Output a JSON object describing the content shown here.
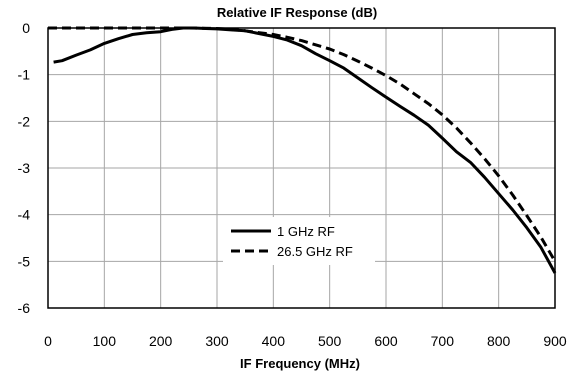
{
  "chart_data": {
    "type": "line",
    "title": "Relative IF Response (dB)",
    "xlabel": "IF Frequency (MHz)",
    "ylabel": "",
    "xlim": [
      0,
      900
    ],
    "ylim": [
      -6,
      0
    ],
    "x_ticks": [
      "0",
      "100",
      "200",
      "300",
      "400",
      "500",
      "600",
      "700",
      "800",
      "900"
    ],
    "y_ticks": [
      "0",
      "-1",
      "-2",
      "-3",
      "-4",
      "-5",
      "-6"
    ],
    "grid": true,
    "legend_position": "lower-center",
    "series": [
      {
        "name": "1 GHz RF",
        "style": "solid",
        "color": "#000000",
        "x": [
          10,
          25,
          50,
          75,
          100,
          125,
          150,
          175,
          200,
          220,
          240,
          260,
          280,
          300,
          325,
          350,
          375,
          400,
          425,
          450,
          475,
          500,
          525,
          550,
          575,
          600,
          625,
          650,
          675,
          700,
          725,
          750,
          775,
          800,
          825,
          850,
          875,
          900
        ],
        "y": [
          -0.73,
          -0.7,
          -0.58,
          -0.47,
          -0.33,
          -0.23,
          -0.14,
          -0.1,
          -0.08,
          -0.03,
          0.0,
          0.0,
          -0.01,
          -0.02,
          -0.04,
          -0.06,
          -0.12,
          -0.18,
          -0.26,
          -0.38,
          -0.55,
          -0.7,
          -0.86,
          -1.07,
          -1.28,
          -1.48,
          -1.68,
          -1.87,
          -2.08,
          -2.36,
          -2.65,
          -2.88,
          -3.2,
          -3.55,
          -3.9,
          -4.28,
          -4.7,
          -5.25
        ]
      },
      {
        "name": "26.5 GHz RF",
        "style": "dashed",
        "color": "#000000",
        "x": [
          0,
          50,
          100,
          150,
          200,
          250,
          300,
          325,
          350,
          375,
          400,
          425,
          450,
          475,
          500,
          525,
          550,
          575,
          600,
          625,
          650,
          675,
          700,
          725,
          750,
          775,
          800,
          825,
          850,
          875,
          900
        ],
        "y": [
          0.0,
          0.0,
          0.0,
          0.0,
          0.0,
          0.0,
          -0.01,
          -0.03,
          -0.06,
          -0.1,
          -0.14,
          -0.2,
          -0.27,
          -0.36,
          -0.45,
          -0.57,
          -0.71,
          -0.86,
          -1.02,
          -1.2,
          -1.41,
          -1.62,
          -1.86,
          -2.14,
          -2.46,
          -2.8,
          -3.17,
          -3.58,
          -4.02,
          -4.48,
          -5.0
        ]
      }
    ]
  }
}
